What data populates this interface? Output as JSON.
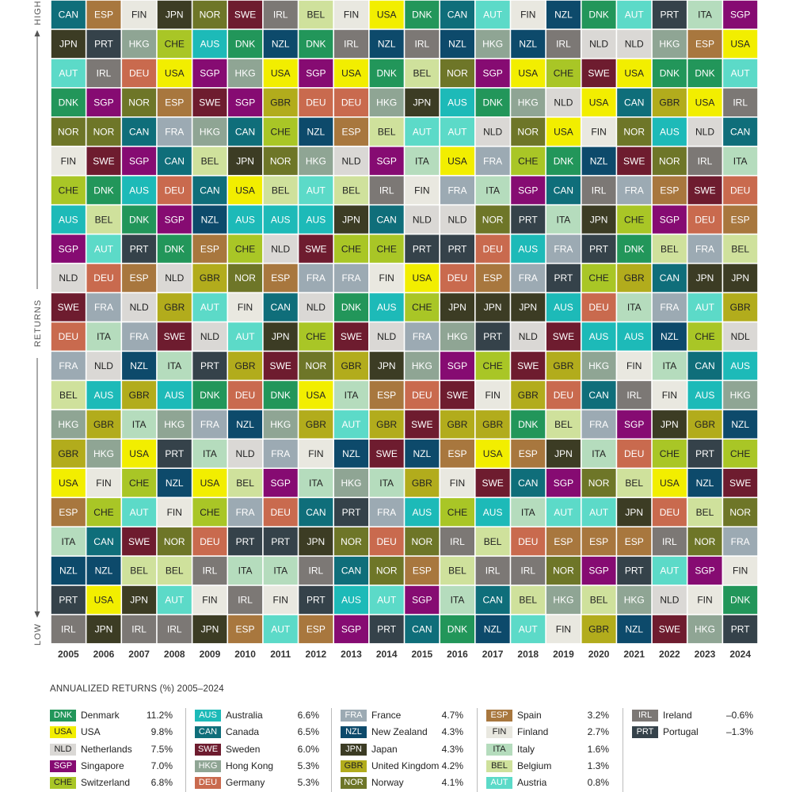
{
  "chart_data": {
    "type": "table",
    "axis_label": "RETURNS",
    "high_label": "HIGH",
    "low_label": "LOW",
    "years": [
      "2005",
      "2006",
      "2007",
      "2008",
      "2009",
      "2010",
      "2011",
      "2012",
      "2013",
      "2014",
      "2015",
      "2016",
      "2017",
      "2018",
      "2019",
      "2020",
      "2021",
      "2022",
      "2023",
      "2024"
    ],
    "rows": [
      [
        "CAN",
        "ESP",
        "FIN",
        "JPN",
        "NOR",
        "SWE",
        "IRL",
        "BEL",
        "FIN",
        "USA",
        "DNK",
        "CAN",
        "AUT",
        "FIN",
        "NZL",
        "DNK",
        "AUT",
        "PRT",
        "ITA",
        "SGP"
      ],
      [
        "JPN",
        "PRT",
        "HKG",
        "CHE",
        "AUS",
        "DNK",
        "NZL",
        "DNK",
        "IRL",
        "NZL",
        "IRL",
        "NZL",
        "HKG",
        "NZL",
        "IRL",
        "NLD",
        "NLD",
        "HKG",
        "ESP",
        "USA"
      ],
      [
        "AUT",
        "IRL",
        "DEU",
        "USA",
        "SGP",
        "HKG",
        "USA",
        "SGP",
        "USA",
        "DNK",
        "BEL",
        "NOR",
        "SGP",
        "USA",
        "CHE",
        "SWE",
        "USA",
        "DNK",
        "DNK",
        "AUT"
      ],
      [
        "DNK",
        "SGP",
        "NOR",
        "ESP",
        "SWE",
        "SGP",
        "GBR",
        "DEU",
        "DEU",
        "HKG",
        "JPN",
        "AUS",
        "DNK",
        "HKG",
        "NLD",
        "USA",
        "CAN",
        "GBR",
        "USA",
        "IRL"
      ],
      [
        "NOR",
        "NOR",
        "CAN",
        "FRA",
        "HKG",
        "CAN",
        "CHE",
        "NZL",
        "ESP",
        "BEL",
        "AUT",
        "AUT",
        "NLD",
        "NOR",
        "USA",
        "FIN",
        "NOR",
        "AUS",
        "NLD",
        "CAN"
      ],
      [
        "FIN",
        "SWE",
        "SGP",
        "CAN",
        "BEL",
        "JPN",
        "NOR",
        "HKG",
        "NLD",
        "SGP",
        "ITA",
        "USA",
        "FRA",
        "CHE",
        "DNK",
        "NZL",
        "SWE",
        "NOR",
        "IRL",
        "ITA"
      ],
      [
        "CHE",
        "DNK",
        "AUS",
        "DEU",
        "CAN",
        "USA",
        "BEL",
        "AUT",
        "BEL",
        "IRL",
        "FIN",
        "FRA",
        "ITA",
        "SGP",
        "CAN",
        "IRL",
        "FRA",
        "ESP",
        "SWE",
        "DEU"
      ],
      [
        "AUS",
        "BEL",
        "DNK",
        "SGP",
        "NZL",
        "AUS",
        "AUS",
        "AUS",
        "JPN",
        "CAN",
        "NLD",
        "NLD",
        "NOR",
        "PRT",
        "ITA",
        "JPN",
        "CHE",
        "SGP",
        "DEU",
        "ESP"
      ],
      [
        "SGP",
        "AUT",
        "PRT",
        "DNK",
        "ESP",
        "CHE",
        "NLD",
        "SWE",
        "CHE",
        "CHE",
        "PRT",
        "PRT",
        "DEU",
        "AUS",
        "FRA",
        "PRT",
        "DNK",
        "BEL",
        "FRA",
        "BEL"
      ],
      [
        "NLD",
        "DEU",
        "ESP",
        "NLD",
        "GBR",
        "NOR",
        "ESP",
        "FRA",
        "FRA",
        "FIN",
        "USA",
        "DEU",
        "ESP",
        "FRA",
        "PRT",
        "CHE",
        "GBR",
        "CAN",
        "JPN",
        "JPN"
      ],
      [
        "SWE",
        "FRA",
        "NLD",
        "GBR",
        "AUT",
        "FIN",
        "CAN",
        "NLD",
        "DNK",
        "AUS",
        "CHE",
        "JPN",
        "JPN",
        "JPN",
        "AUS",
        "DEU",
        "ITA",
        "FRA",
        "AUT",
        "GBR"
      ],
      [
        "DEU",
        "ITA",
        "FRA",
        "SWE",
        "NLD",
        "AUT",
        "JPN",
        "CHE",
        "SWE",
        "NLD",
        "FRA",
        "HKG",
        "PRT",
        "NLD",
        "SWE",
        "AUS",
        "AUS",
        "NZL",
        "CHE",
        "NDL"
      ],
      [
        "FRA",
        "NLD",
        "NZL",
        "ITA",
        "PRT",
        "GBR",
        "SWE",
        "NOR",
        "GBR",
        "JPN",
        "HKG",
        "SGP",
        "CHE",
        "SWE",
        "GBR",
        "HKG",
        "FIN",
        "ITA",
        "CAN",
        "AUS"
      ],
      [
        "BEL",
        "AUS",
        "GBR",
        "AUS",
        "DNK",
        "DEU",
        "DNK",
        "USA",
        "ITA",
        "ESP",
        "DEU",
        "SWE",
        "FIN",
        "GBR",
        "DEU",
        "CAN",
        "IRL",
        "FIN",
        "AUS",
        "HKG"
      ],
      [
        "HKG",
        "GBR",
        "ITA",
        "HKG",
        "FRA",
        "NZL",
        "HKG",
        "GBR",
        "AUT",
        "GBR",
        "SWE",
        "GBR",
        "GBR",
        "DNK",
        "BEL",
        "FRA",
        "SGP",
        "JPN",
        "GBR",
        "NZL"
      ],
      [
        "GBR",
        "HKG",
        "USA",
        "PRT",
        "ITA",
        "NLD",
        "FRA",
        "FIN",
        "NZL",
        "SWE",
        "NZL",
        "ESP",
        "USA",
        "ESP",
        "JPN",
        "ITA",
        "DEU",
        "CHE",
        "PRT",
        "CHE"
      ],
      [
        "USA",
        "FIN",
        "CHE",
        "NZL",
        "USA",
        "BEL",
        "SGP",
        "ITA",
        "HKG",
        "ITA",
        "GBR",
        "FIN",
        "SWE",
        "CAN",
        "SGP",
        "NOR",
        "BEL",
        "USA",
        "NZL",
        "SWE"
      ],
      [
        "ESP",
        "CHE",
        "AUT",
        "FIN",
        "CHE",
        "FRA",
        "DEU",
        "CAN",
        "PRT",
        "FRA",
        "AUS",
        "CHE",
        "AUS",
        "ITA",
        "AUT",
        "AUT",
        "JPN",
        "DEU",
        "BEL",
        "NOR"
      ],
      [
        "ITA",
        "CAN",
        "SWE",
        "NOR",
        "DEU",
        "PRT",
        "PRT",
        "JPN",
        "NOR",
        "DEU",
        "NOR",
        "IRL",
        "BEL",
        "DEU",
        "ESP",
        "ESP",
        "ESP",
        "IRL",
        "NOR",
        "FRA"
      ],
      [
        "NZL",
        "NZL",
        "BEL",
        "BEL",
        "IRL",
        "ITA",
        "ITA",
        "IRL",
        "CAN",
        "NOR",
        "ESP",
        "BEL",
        "IRL",
        "IRL",
        "NOR",
        "SGP",
        "PRT",
        "AUT",
        "SGP",
        "FIN"
      ],
      [
        "PRT",
        "USA",
        "JPN",
        "AUT",
        "FIN",
        "IRL",
        "FIN",
        "PRT",
        "AUS",
        "AUT",
        "SGP",
        "ITA",
        "CAN",
        "BEL",
        "HKG",
        "BEL",
        "HKG",
        "NLD",
        "FIN",
        "DNK"
      ],
      [
        "IRL",
        "JPN",
        "IRL",
        "IRL",
        "JPN",
        "ESP",
        "AUT",
        "ESP",
        "SGP",
        "PRT",
        "CAN",
        "DNK",
        "NZL",
        "AUT",
        "FIN",
        "GBR",
        "NZL",
        "SWE",
        "HKG",
        "PRT"
      ]
    ],
    "colors": {
      "DNK": "#22965a",
      "USA": "#f2ee00",
      "NLD": "#dad8d5",
      "SGP": "#860b72",
      "CHE": "#a9c626",
      "AUS": "#1dbab8",
      "CAN": "#0f6e7a",
      "SWE": "#6e1c2f",
      "HKG": "#8fa594",
      "DEU": "#c96a4e",
      "FRA": "#9caab3",
      "NZL": "#0d4a6b",
      "JPN": "#3c3c24",
      "GBR": "#b2ac1c",
      "NOR": "#6e7628",
      "ESP": "#a8773e",
      "FIN": "#e9e8e0",
      "ITA": "#b5dcbd",
      "BEL": "#cfe19c",
      "AUT": "#5cdac8",
      "IRL": "#7c7875",
      "PRT": "#35424a",
      "NDL": "#dad8d5"
    },
    "dark_text_codes": [
      "USA",
      "NLD",
      "NDL",
      "FIN",
      "ITA",
      "BEL",
      "CHE",
      "GBR"
    ],
    "legend_title": "ANNUALIZED RETURNS (%) 2005–2024",
    "legend": [
      [
        {
          "code": "DNK",
          "name": "Denmark",
          "value": "11.2%"
        },
        {
          "code": "USA",
          "name": "USA",
          "value": "9.8%"
        },
        {
          "code": "NLD",
          "name": "Netherlands",
          "value": "7.5%"
        },
        {
          "code": "SGP",
          "name": "Singapore",
          "value": "7.0%"
        },
        {
          "code": "CHE",
          "name": "Switzerland",
          "value": "6.8%"
        }
      ],
      [
        {
          "code": "AUS",
          "name": "Australia",
          "value": "6.6%"
        },
        {
          "code": "CAN",
          "name": "Canada",
          "value": "6.5%"
        },
        {
          "code": "SWE",
          "name": "Sweden",
          "value": "6.0%"
        },
        {
          "code": "HKG",
          "name": "Hong Kong",
          "value": "5.3%"
        },
        {
          "code": "DEU",
          "name": "Germany",
          "value": "5.3%"
        }
      ],
      [
        {
          "code": "FRA",
          "name": "France",
          "value": "4.7%"
        },
        {
          "code": "NZL",
          "name": "New Zealand",
          "value": "4.3%"
        },
        {
          "code": "JPN",
          "name": "Japan",
          "value": "4.3%"
        },
        {
          "code": "GBR",
          "name": "United Kingdom",
          "value": "4.2%"
        },
        {
          "code": "NOR",
          "name": "Norway",
          "value": "4.1%"
        }
      ],
      [
        {
          "code": "ESP",
          "name": "Spain",
          "value": "3.2%"
        },
        {
          "code": "FIN",
          "name": "Finland",
          "value": "2.7%"
        },
        {
          "code": "ITA",
          "name": "Italy",
          "value": "1.6%"
        },
        {
          "code": "BEL",
          "name": "Belgium",
          "value": "1.3%"
        },
        {
          "code": "AUT",
          "name": "Austria",
          "value": "0.8%"
        }
      ],
      [
        {
          "code": "IRL",
          "name": "Ireland",
          "value": "–0.6%"
        },
        {
          "code": "PRT",
          "name": "Portugal",
          "value": "–1.3%"
        }
      ]
    ]
  }
}
